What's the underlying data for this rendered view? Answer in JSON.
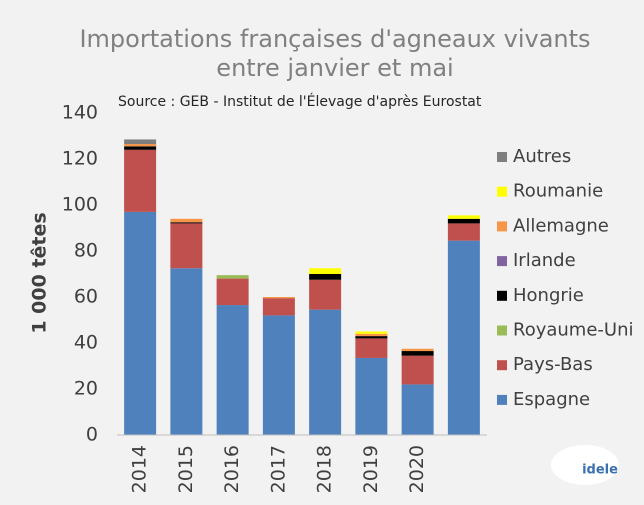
{
  "chart_data": {
    "type": "stacked_bar",
    "title": "Importations françaises d'agneaux vivants",
    "subtitle": "entre janvier et mai",
    "source": "Source : GEB - Institut de l'Élevage d'après Eurostat",
    "y_label": "1 000 têtes",
    "logo": "idele",
    "categories": [
      "2014",
      "2015",
      "2016",
      "2017",
      "2018",
      "2019",
      "2020",
      null
    ],
    "series": [
      {
        "name": "Espagne",
        "color": "#4f81bd",
        "values": [
          97,
          72.5,
          56.5,
          52,
          54.5,
          33.5,
          22,
          84.5
        ]
      },
      {
        "name": "Pays-Bas",
        "color": "#c0504d",
        "values": [
          27,
          19.5,
          11.5,
          7.5,
          13,
          8.5,
          12.5,
          7.5
        ]
      },
      {
        "name": "Royaume-Uni",
        "color": "#9bbb59",
        "values": [
          0,
          0,
          1.5,
          0,
          0,
          0,
          0,
          0
        ]
      },
      {
        "name": "Hongrie",
        "color": "#000000",
        "values": [
          1.5,
          0.5,
          0,
          0,
          2.5,
          1,
          2,
          2
        ]
      },
      {
        "name": "Irlande",
        "color": "#8064a2",
        "values": [
          0,
          0,
          0,
          0,
          0,
          0,
          0,
          0
        ]
      },
      {
        "name": "Allemagne",
        "color": "#f79646",
        "values": [
          1,
          1.5,
          0,
          0.5,
          0,
          1,
          1,
          0
        ]
      },
      {
        "name": "Roumanie",
        "color": "#ffff00",
        "values": [
          0,
          0,
          0,
          0,
          2.5,
          1,
          0,
          1.5
        ]
      },
      {
        "name": "Autres",
        "color": "#7f7f7f",
        "values": [
          2,
          0,
          0,
          0,
          0,
          0,
          0,
          0
        ]
      }
    ],
    "ylim": [
      0,
      140
    ],
    "yticks": [
      0,
      20,
      40,
      60,
      80,
      100,
      120,
      140
    ],
    "grid": false
  }
}
